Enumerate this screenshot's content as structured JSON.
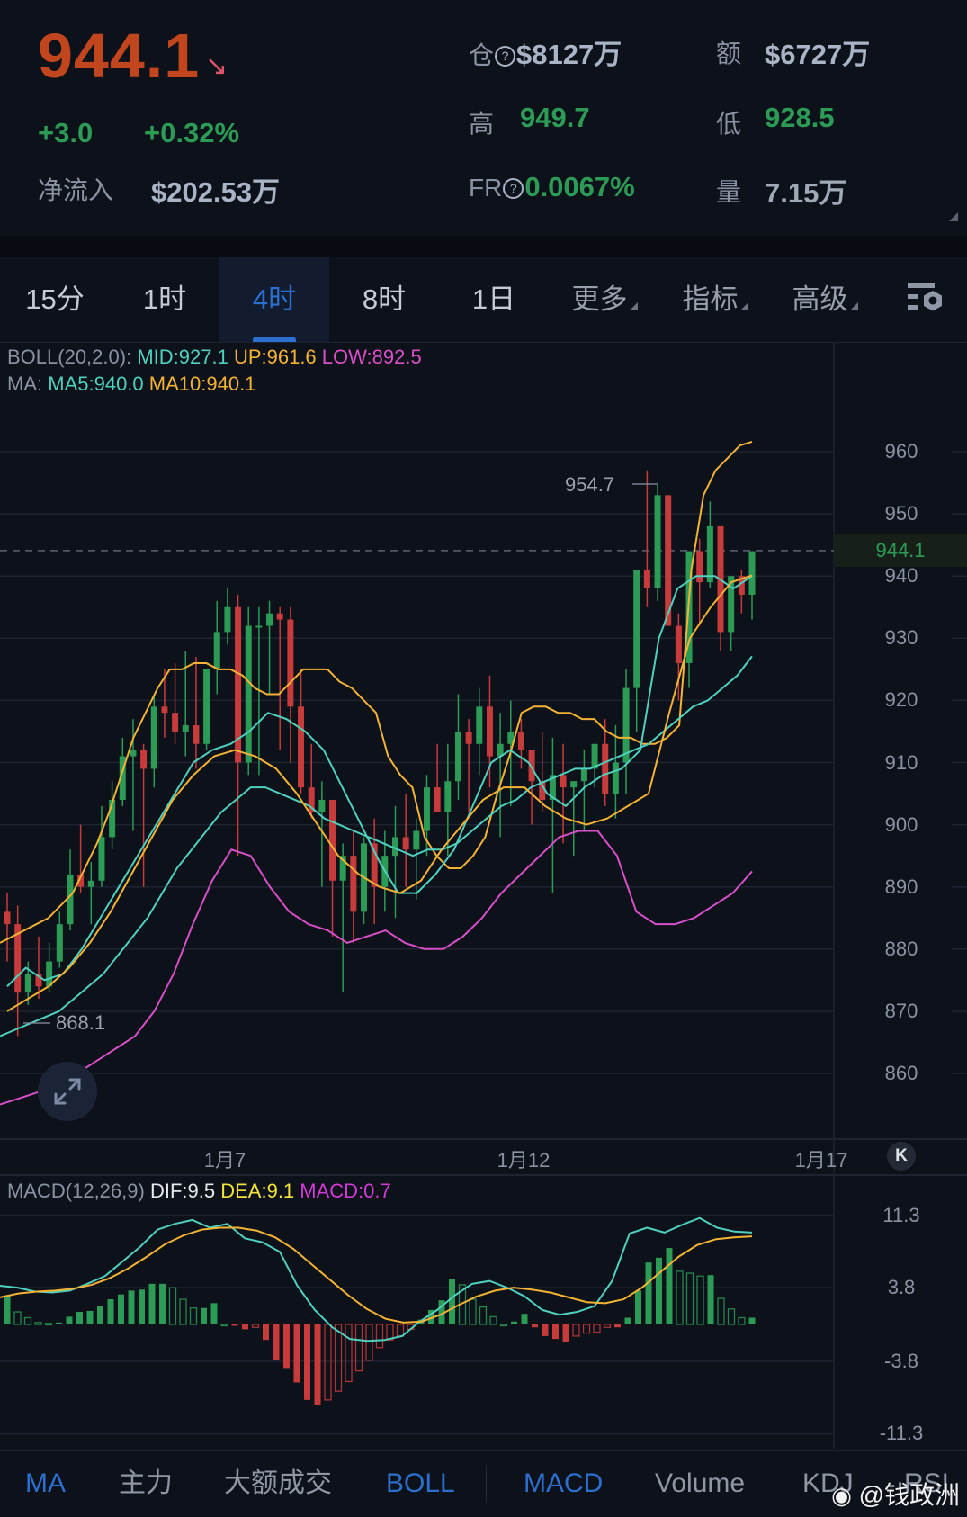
{
  "header": {
    "last_price": "944.1",
    "direction_icon": "arrow-down-right",
    "change": "+3.0",
    "change_pct": "+0.32%",
    "net_inflow_label": "净流入",
    "net_inflow_value": "$202.53万",
    "open_interest_label": "仓",
    "open_interest_value": "$8127万",
    "turnover_label": "额",
    "turnover_value": "$6727万",
    "high_label": "高",
    "high_value": "949.7",
    "low_label": "低",
    "low_value": "928.5",
    "funding_rate_label": "FR",
    "funding_rate_value": "0.0067%",
    "volume_label": "量",
    "volume_value": "7.15万",
    "help_icon_glyph": "?"
  },
  "timeframe_tabs": [
    {
      "label": "15分",
      "active": false
    },
    {
      "label": "1时",
      "active": false
    },
    {
      "label": "4时",
      "active": true
    },
    {
      "label": "8时",
      "active": false
    },
    {
      "label": "1日",
      "active": false
    },
    {
      "label": "更多",
      "dropdown": true
    },
    {
      "label": "指标",
      "dropdown": true
    },
    {
      "label": "高级",
      "dropdown": true
    }
  ],
  "settings_icon": "chart-settings-icon",
  "boll_legend": {
    "prefix": "BOLL(20,2.0):",
    "mid": "MID:927.1",
    "up": "UP:961.6",
    "low": "LOW:892.5"
  },
  "ma_legend": {
    "prefix": "MA:",
    "ma5": "MA5:940.0",
    "ma10": "MA10:940.1"
  },
  "price_axis": {
    "ticks": [
      "960",
      "950",
      "940",
      "930",
      "920",
      "910",
      "900",
      "890",
      "880",
      "870",
      "860"
    ],
    "current_price_tag": "944.1",
    "high_marker": "954.7",
    "low_marker": "868.1"
  },
  "date_axis": {
    "ticks": [
      "1月7",
      "1月12",
      "1月17"
    ],
    "jump_to_latest_glyph": "K"
  },
  "macd_legend": {
    "prefix": "MACD(12,26,9)",
    "dif": "DIF:9.5",
    "dea": "DEA:9.1",
    "macd": "MACD:0.7"
  },
  "macd_axis": {
    "ticks": [
      "11.3",
      "3.8",
      "-3.8",
      "-11.3"
    ]
  },
  "indicator_tabs": [
    {
      "label": "MA",
      "active": true
    },
    {
      "label": "主力",
      "active": false
    },
    {
      "label": "大额成交",
      "active": false
    },
    {
      "label": "BOLL",
      "active": true
    },
    {
      "label": "MACD",
      "active": true
    },
    {
      "label": "Volume",
      "active": false
    },
    {
      "label": "KDJ",
      "active": false
    },
    {
      "label": "RSI",
      "active": false
    }
  ],
  "watermark": "@钱政洲",
  "colors": {
    "background": "#0d111a",
    "up": "#2c9b55",
    "down": "#c83b3b",
    "last_price": "#c2461d",
    "accent": "#2b70d0",
    "boll_mid": "#4fd1c0",
    "boll_up": "#f5b335",
    "boll_low": "#d94fc9",
    "ma5": "#4fd1c0",
    "ma10": "#f5b335",
    "dif": "#4fd1c0",
    "dea": "#f5b335",
    "macd": "#d13ad8"
  },
  "chart_data": [
    {
      "type": "candlestick",
      "title": "4H price chart with BOLL(20,2.0) and MA",
      "x_ticks": [
        "1月7",
        "1月12",
        "1月17"
      ],
      "ylim": [
        855,
        962
      ],
      "y_ticks": [
        860,
        870,
        880,
        890,
        900,
        910,
        920,
        930,
        940,
        950,
        960
      ],
      "ohlc": [
        [
          886,
          889,
          878,
          884
        ],
        [
          884,
          887,
          866,
          873
        ],
        [
          873,
          878,
          871,
          876
        ],
        [
          876,
          882,
          872,
          874
        ],
        [
          874,
          881,
          873,
          878
        ],
        [
          878,
          886,
          877,
          884
        ],
        [
          884,
          896,
          883,
          892
        ],
        [
          892,
          900,
          889,
          890
        ],
        [
          890,
          894,
          884,
          891
        ],
        [
          891,
          903,
          890,
          898
        ],
        [
          898,
          907,
          896,
          904
        ],
        [
          904,
          914,
          903,
          911
        ],
        [
          911,
          917,
          899,
          912
        ],
        [
          912,
          913,
          890,
          909
        ],
        [
          909,
          921,
          906,
          919
        ],
        [
          919,
          925,
          914,
          918
        ],
        [
          918,
          926,
          913,
          915
        ],
        [
          915,
          928,
          911,
          916
        ],
        [
          916,
          927,
          909,
          913
        ],
        [
          913,
          924,
          912,
          925
        ],
        [
          925,
          936,
          921,
          931
        ],
        [
          931,
          938,
          929,
          935
        ],
        [
          935,
          937,
          895,
          910
        ],
        [
          910,
          935,
          908,
          932
        ],
        [
          932,
          935,
          908,
          932
        ],
        [
          932,
          936,
          921,
          934
        ],
        [
          934,
          935,
          912,
          933
        ],
        [
          933,
          935,
          910,
          919
        ],
        [
          919,
          925,
          905,
          906
        ],
        [
          906,
          913,
          901,
          902
        ],
        [
          902,
          907,
          890,
          904
        ],
        [
          904,
          901,
          882,
          891
        ],
        [
          891,
          897,
          873,
          895
        ],
        [
          895,
          899,
          881,
          886
        ],
        [
          886,
          898,
          884,
          897
        ],
        [
          897,
          901,
          884,
          890
        ],
        [
          890,
          899,
          886,
          895
        ],
        [
          895,
          903,
          885,
          898
        ],
        [
          898,
          905,
          890,
          896
        ],
        [
          896,
          901,
          888,
          899
        ],
        [
          899,
          908,
          895,
          906
        ],
        [
          906,
          913,
          902,
          902
        ],
        [
          902,
          913,
          895,
          907
        ],
        [
          907,
          921,
          904,
          915
        ],
        [
          915,
          917,
          902,
          913
        ],
        [
          913,
          922,
          908,
          919
        ],
        [
          919,
          924,
          906,
          911
        ],
        [
          911,
          918,
          898,
          913
        ],
        [
          913,
          920,
          903,
          915
        ],
        [
          915,
          917,
          909,
          912
        ],
        [
          912,
          912,
          900,
          907
        ],
        [
          907,
          915,
          902,
          904
        ],
        [
          904,
          914,
          889,
          908
        ],
        [
          908,
          913,
          897,
          906
        ],
        [
          906,
          907,
          895,
          907
        ],
        [
          907,
          912,
          899,
          909
        ],
        [
          909,
          913,
          906,
          913
        ],
        [
          913,
          917,
          903,
          905
        ],
        [
          905,
          916,
          901,
          910
        ],
        [
          910,
          925,
          905,
          922
        ],
        [
          922,
          938,
          915,
          941
        ],
        [
          941,
          957,
          935,
          938
        ],
        [
          938,
          955,
          936,
          953
        ],
        [
          953,
          953,
          932,
          932
        ],
        [
          932,
          934,
          920,
          926
        ],
        [
          926,
          940,
          922,
          944
        ],
        [
          944,
          946,
          932,
          939
        ],
        [
          939,
          952,
          938,
          948
        ],
        [
          948,
          948,
          928,
          931
        ],
        [
          931,
          935,
          928,
          940
        ],
        [
          940,
          941,
          934,
          937
        ],
        [
          937,
          944,
          933,
          944
        ]
      ],
      "high_label": 954.7,
      "low_label": 868.1,
      "current_price": 944.1,
      "series": [
        {
          "name": "BOLL UP",
          "values": [
            881,
            882,
            883,
            884,
            885,
            887,
            889,
            893,
            897,
            902,
            908,
            914,
            918,
            922,
            925,
            925,
            926,
            926,
            925,
            925,
            924,
            922,
            921,
            921,
            923,
            925,
            925,
            925,
            923,
            922,
            920,
            918,
            911,
            908,
            906,
            898,
            895,
            893,
            893,
            895,
            898,
            905,
            911,
            918,
            919,
            919,
            918,
            918,
            917,
            917,
            915,
            914,
            914,
            913,
            913,
            914,
            916,
            941,
            953,
            957,
            959,
            961,
            961.6
          ]
        },
        {
          "name": "BOLL MID",
          "values": [
            866,
            867,
            868,
            869,
            870,
            872,
            874,
            876,
            879,
            882,
            885,
            889,
            893,
            896,
            899,
            902,
            904,
            906,
            906,
            905,
            904,
            903,
            901,
            900,
            899,
            898,
            897,
            896,
            895,
            896,
            896,
            897,
            899,
            901,
            903,
            904,
            906,
            907,
            908,
            909,
            909,
            910,
            911,
            912,
            913,
            915,
            917,
            919,
            920,
            922,
            924,
            927.1
          ]
        },
        {
          "name": "BOLL LOW",
          "values": [
            855,
            856,
            857,
            858,
            860,
            862,
            864,
            866,
            870,
            876,
            884,
            891,
            896,
            895,
            890,
            886,
            884,
            883,
            881,
            882,
            883,
            881,
            880,
            880,
            882,
            885,
            889,
            892,
            895,
            898,
            899,
            899,
            895,
            886,
            884,
            884,
            885,
            887,
            889,
            892.5
          ]
        },
        {
          "name": "MA5",
          "values": [
            874,
            877,
            875,
            876,
            880,
            885,
            890,
            895,
            900,
            905,
            910,
            912,
            913,
            915,
            918,
            917,
            915,
            912,
            906,
            900,
            894,
            889,
            889,
            892,
            896,
            903,
            910,
            912,
            910,
            905,
            903,
            906,
            908,
            909,
            912,
            930,
            938,
            940,
            940,
            938,
            940.0
          ]
        },
        {
          "name": "MA10",
          "values": [
            870,
            872,
            874,
            877,
            881,
            886,
            892,
            898,
            904,
            908,
            911,
            912,
            911,
            909,
            905,
            900,
            895,
            892,
            890,
            889,
            891,
            896,
            900,
            904,
            906,
            906,
            903,
            901,
            900,
            901,
            903,
            905,
            918,
            930,
            935,
            939,
            940.1
          ]
        }
      ]
    },
    {
      "type": "bar+line",
      "title": "MACD(12,26,9)",
      "ylim": [
        -11.3,
        11.3
      ],
      "y_ticks": [
        11.3,
        3.8,
        -3.8,
        -11.3
      ],
      "series": [
        {
          "name": "DIF",
          "values": [
            4.0,
            3.8,
            3.4,
            3.3,
            3.5,
            4.2,
            5.0,
            6.5,
            8.0,
            9.8,
            10.4,
            10.8,
            10.0,
            10.4,
            8.9,
            8.5,
            7.5,
            4.0,
            1.5,
            -0.3,
            -1.5,
            -1.7,
            -1.6,
            -1.2,
            0.3,
            1.5,
            3.0,
            4.2,
            4.5,
            3.8,
            2.9,
            1.5,
            1.0,
            1.3,
            1.9,
            4.5,
            9.4,
            10.0,
            9.5,
            10.3,
            11.0,
            10.0,
            9.6,
            9.5
          ]
        },
        {
          "name": "DEA",
          "values": [
            2.8,
            3.2,
            3.4,
            3.5,
            3.7,
            4.1,
            4.8,
            5.8,
            7.0,
            8.3,
            9.2,
            9.8,
            10.0,
            10.0,
            9.7,
            9.0,
            7.8,
            6.2,
            4.6,
            3.0,
            1.6,
            0.6,
            0.2,
            0.3,
            1.0,
            2.0,
            2.9,
            3.5,
            3.8,
            3.6,
            3.3,
            2.8,
            2.3,
            2.2,
            2.6,
            3.8,
            5.4,
            7.0,
            8.2,
            8.8,
            9.0,
            9.1
          ]
        },
        {
          "name": "MACD",
          "values": [
            3.0,
            1.3,
            0.7,
            0.2,
            0.1,
            0.2,
            0.8,
            1.3,
            1.4,
            1.9,
            2.6,
            3.1,
            3.5,
            3.6,
            4.2,
            4.2,
            3.8,
            2.6,
            1.7,
            1.7,
            2.2,
            0,
            -0.1,
            -0.5,
            -0.3,
            -1.6,
            -3.7,
            -4.5,
            -6.0,
            -7.8,
            -8.3,
            -7.8,
            -6.9,
            -5.9,
            -4.8,
            -3.7,
            -2.4,
            -1.6,
            -1.2,
            -0.5,
            0.5,
            1.5,
            2.5,
            4.7,
            4.1,
            2.6,
            1.8,
            0.8,
            0.0,
            0.3,
            1.1,
            -0.3,
            -1.2,
            -1.5,
            -1.8,
            -1.2,
            -0.9,
            -0.8,
            -0.3,
            -0.3,
            0.7,
            3.5,
            6.4,
            6.9,
            7.9,
            5.5,
            5.3,
            5.0,
            5.1,
            2.7,
            1.6,
            0.7,
            0.7
          ]
        }
      ]
    }
  ]
}
